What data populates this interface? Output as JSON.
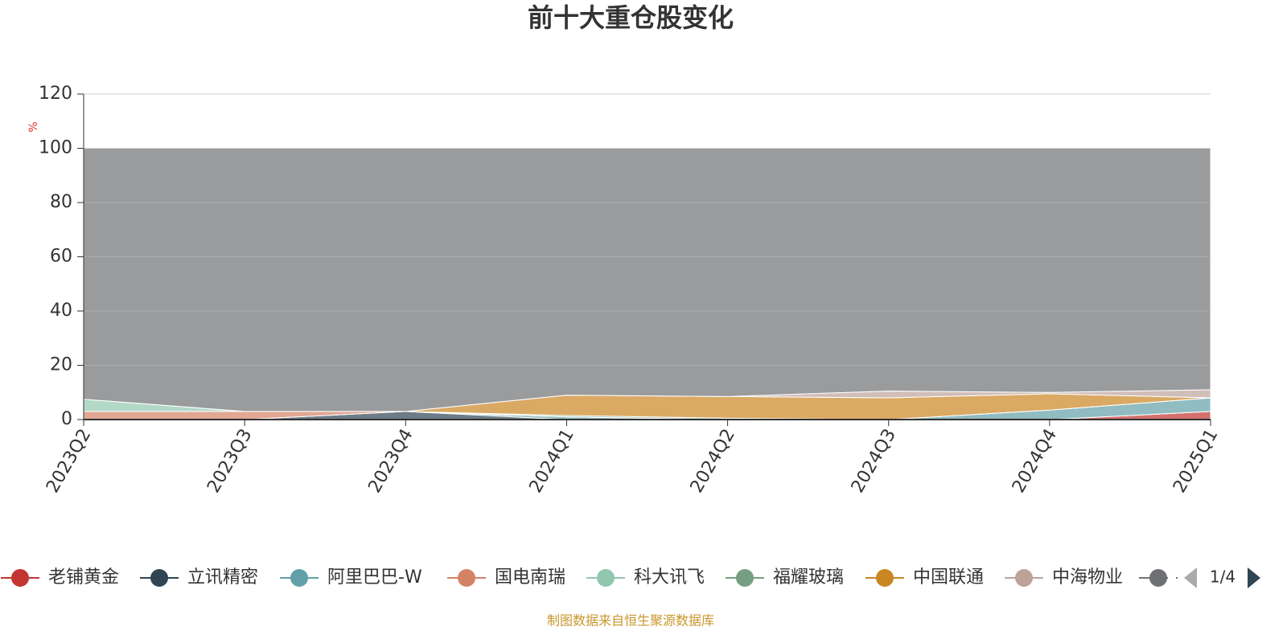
{
  "chart_data": {
    "type": "area",
    "stacked": true,
    "title": "前十大重仓股变化",
    "y_label": "%",
    "source": "制图数据来自恒生聚源数据库",
    "legend_page": "1/4",
    "categories": [
      "2023Q2",
      "2023Q3",
      "2023Q4",
      "2024Q1",
      "2024Q2",
      "2024Q3",
      "2024Q4",
      "2025Q1"
    ],
    "ylim": [
      0,
      120
    ],
    "yticks": [
      0,
      20,
      40,
      60,
      80,
      100,
      120
    ],
    "grid": true,
    "series": [
      {
        "name": "老铺黄金",
        "color": "#c23531",
        "values": [
          0,
          0,
          0,
          0,
          0,
          0,
          0,
          3
        ]
      },
      {
        "name": "立讯精密",
        "color": "#2f4554",
        "values": [
          0,
          0,
          3,
          0,
          0,
          0,
          0,
          0
        ]
      },
      {
        "name": "阿里巴巴-W",
        "color": "#61a0a8",
        "values": [
          0,
          0,
          0,
          1,
          0,
          0,
          3.5,
          5
        ]
      },
      {
        "name": "国电南瑞",
        "color": "#d48265",
        "values": [
          3,
          3,
          0,
          0,
          0,
          0,
          0,
          0
        ]
      },
      {
        "name": "科大讯飞",
        "color": "#91c7ae",
        "values": [
          4.5,
          0,
          0,
          0,
          0,
          0,
          0,
          0
        ]
      },
      {
        "name": "福耀玻璃",
        "color": "#749f83",
        "values": [
          0,
          0,
          0,
          0.5,
          0.5,
          0,
          0,
          0
        ]
      },
      {
        "name": "中国联通",
        "color": "#ca8622",
        "values": [
          0,
          0,
          0,
          7.5,
          8,
          8,
          6,
          0
        ]
      },
      {
        "name": "中海物业",
        "color": "#bda29a",
        "values": [
          0,
          0,
          0,
          0,
          0,
          2.5,
          0.5,
          3
        ]
      },
      {
        "name": null,
        "color": "#6e7074",
        "values": [
          92.5,
          97,
          97,
          91,
          91.5,
          89.5,
          90,
          89
        ]
      }
    ]
  }
}
